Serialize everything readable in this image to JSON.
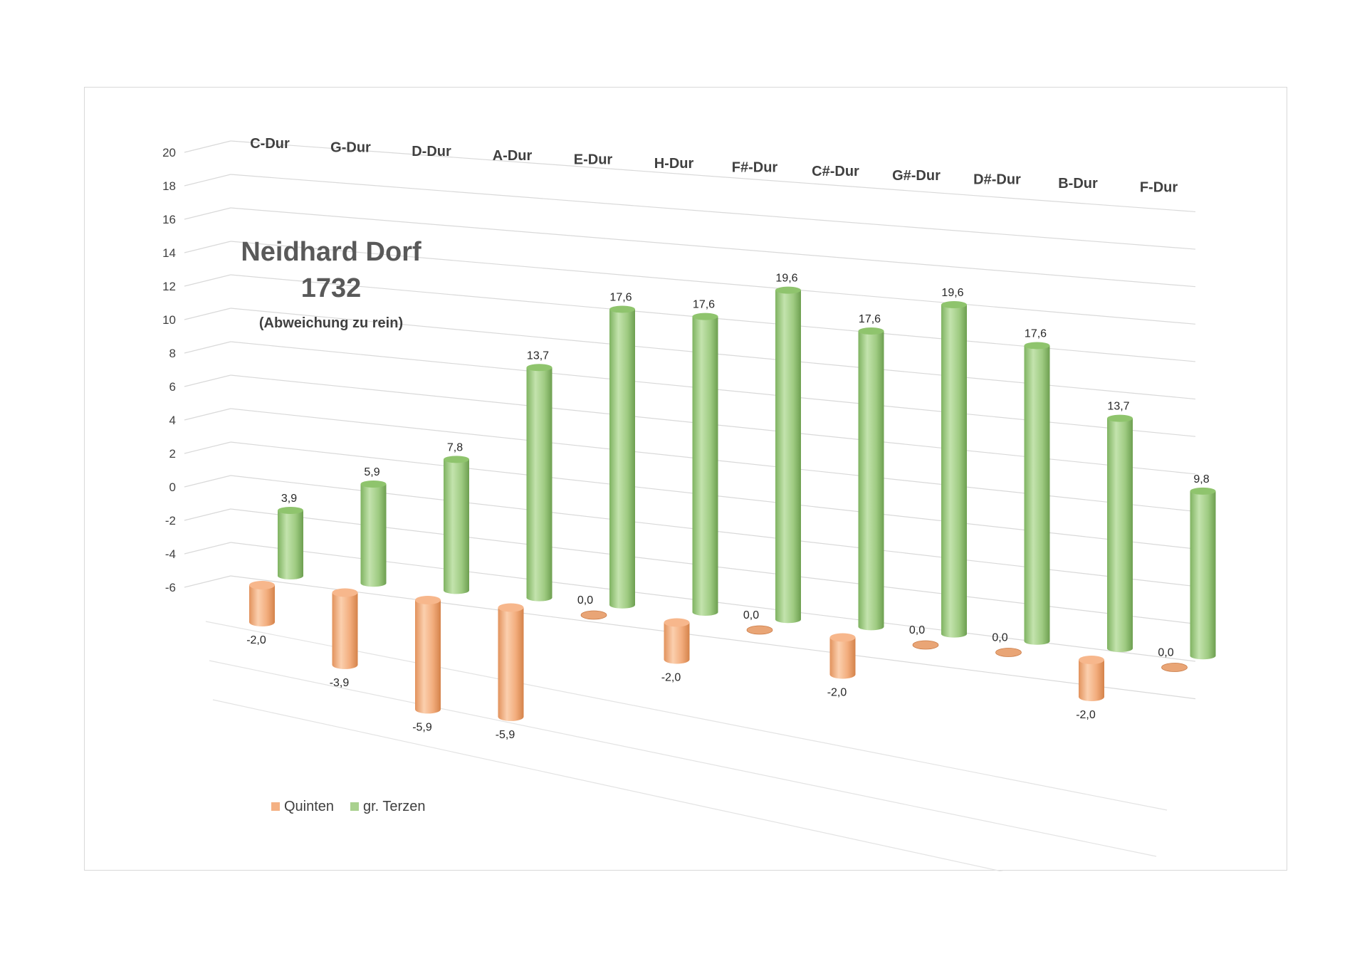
{
  "chart_data": {
    "type": "bar",
    "style": "3d-cylinder",
    "title": "Neidhard Dorf",
    "title_year": "1732",
    "subtitle": "(Abweichung zu rein)",
    "categories": [
      "C-Dur",
      "G-Dur",
      "D-Dur",
      "A-Dur",
      "E-Dur",
      "H-Dur",
      "F#-Dur",
      "C#-Dur",
      "G#-Dur",
      "D#-Dur",
      "B-Dur",
      "F-Dur"
    ],
    "series": [
      {
        "name": "Quinten",
        "color": "#f4b183",
        "values": [
          -2.0,
          -3.9,
          -5.9,
          -5.9,
          0.0,
          -2.0,
          0.0,
          -2.0,
          0.0,
          0.0,
          -2.0,
          0.0
        ],
        "labels": [
          "-2,0",
          "-3,9",
          "-5,9",
          "-5,9",
          "0,0",
          "-2,0",
          "0,0",
          "-2,0",
          "0,0",
          "0,0",
          "-2,0",
          "0,0"
        ]
      },
      {
        "name": "gr. Terzen",
        "color": "#a9d18e",
        "values": [
          3.9,
          5.9,
          7.8,
          13.7,
          17.6,
          17.6,
          19.6,
          17.6,
          19.6,
          17.6,
          13.7,
          9.8
        ],
        "labels": [
          "3,9",
          "5,9",
          "7,8",
          "13,7",
          "17,6",
          "17,6",
          "19,6",
          "17,6",
          "19,6",
          "17,6",
          "13,7",
          "9,8"
        ]
      }
    ],
    "yticks": [
      "20",
      "18",
      "16",
      "14",
      "12",
      "10",
      "8",
      "6",
      "4",
      "2",
      "0",
      "-2",
      "-4",
      "-6"
    ],
    "ylim": [
      -6,
      20
    ],
    "grid": true,
    "legend_position": "bottom-left"
  }
}
